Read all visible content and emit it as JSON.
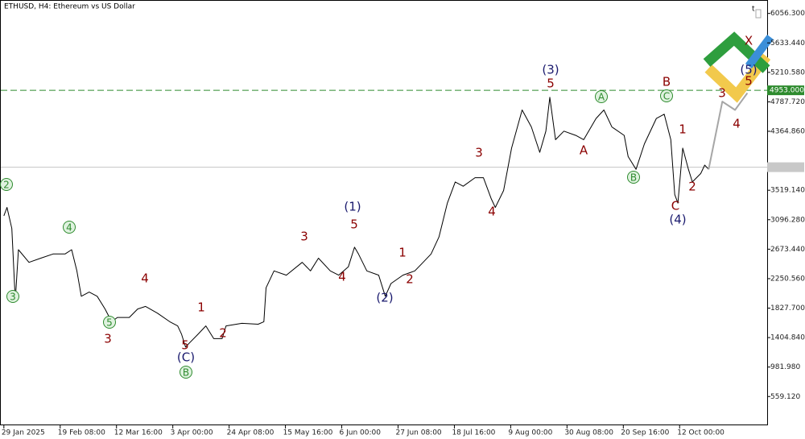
{
  "chart_data": {
    "type": "line",
    "title": "ETHUSD, H4:  Ethereum vs US Dollar",
    "xlim": [
      -7,
      1735
    ],
    "ylim": [
      146,
      6226
    ],
    "xticks": [
      {
        "value": 0,
        "label": "29 Jan 2025"
      },
      {
        "value": 128,
        "label": "19 Feb 08:00"
      },
      {
        "value": 256,
        "label": "12 Mar 16:00"
      },
      {
        "value": 384,
        "label": "3 Apr 00:00"
      },
      {
        "value": 512,
        "label": "24 Apr 08:00"
      },
      {
        "value": 640,
        "label": "15 May 16:00"
      },
      {
        "value": 768,
        "label": "6 Jun 00:00"
      },
      {
        "value": 896,
        "label": "27 Jun 08:00"
      },
      {
        "value": 1024,
        "label": "18 Jul 16:00"
      },
      {
        "value": 1152,
        "label": "9 Aug 00:00"
      },
      {
        "value": 1280,
        "label": "30 Aug 08:00"
      },
      {
        "value": 1408,
        "label": "20 Sep 16:00"
      },
      {
        "value": 1536,
        "label": "12 Oct 00:00"
      }
    ],
    "yticks": [
      {
        "value": 559.12,
        "label": "559.120"
      },
      {
        "value": 981.98,
        "label": "981.980"
      },
      {
        "value": 1404.84,
        "label": "1404.840"
      },
      {
        "value": 1827.7,
        "label": "1827.700"
      },
      {
        "value": 2250.56,
        "label": "2250.560"
      },
      {
        "value": 2673.44,
        "label": "2673.440"
      },
      {
        "value": 3096.28,
        "label": "3096.280"
      },
      {
        "value": 3519.14,
        "label": "3519.140"
      },
      {
        "value": 4364.86,
        "label": "4364.860"
      },
      {
        "value": 4787.72,
        "label": "4787.720"
      },
      {
        "value": 5210.58,
        "label": "5210.580"
      },
      {
        "value": 5633.44,
        "label": "5633.440"
      },
      {
        "value": 6056.3,
        "label": "6056.300"
      }
    ],
    "level": {
      "value": 4953,
      "label": "4953.000",
      "color": "#2e8b2e"
    },
    "current_price": 3850,
    "series": [
      {
        "color": "#000000",
        "x": [
          0,
          7,
          18,
          26,
          33,
          57,
          84,
          112,
          139,
          154,
          166,
          176,
          194,
          212,
          230,
          245,
          258,
          285,
          304,
          322,
          349,
          377,
          395,
          404,
          413,
          422,
          441,
          459,
          477,
          496,
          505,
          541,
          578,
          591,
          596,
          614,
          642,
          678,
          697,
          715,
          742,
          761,
          783,
          797,
          806,
          825,
          852,
          867,
          880,
          907,
          934,
          953,
          971,
          989,
          1008,
          1026,
          1044,
          1071,
          1090,
          1108,
          1117,
          1136,
          1154,
          1178,
          1199,
          1218,
          1232,
          1241,
          1254,
          1273,
          1300,
          1318,
          1346,
          1364,
          1382,
          1410,
          1419,
          1437,
          1456,
          1483,
          1501,
          1516,
          1525,
          1532,
          1543,
          1556,
          1565,
          1584,
          1593,
          1602
        ],
        "values": [
          3152,
          3273,
          2970,
          1937,
          2666,
          2484,
          2544,
          2605,
          2605,
          2666,
          2362,
          1998,
          2058,
          1998,
          1815,
          1633,
          1694,
          1694,
          1815,
          1852,
          1755,
          1633,
          1572,
          1451,
          1268,
          1329,
          1451,
          1572,
          1390,
          1390,
          1572,
          1609,
          1597,
          1633,
          2119,
          2362,
          2301,
          2484,
          2362,
          2544,
          2362,
          2301,
          2420,
          2702,
          2605,
          2362,
          2301,
          1998,
          2180,
          2301,
          2362,
          2484,
          2605,
          2848,
          3334,
          3638,
          3577,
          3699,
          3699,
          3395,
          3273,
          3516,
          4124,
          4671,
          4428,
          4063,
          4367,
          4853,
          4245,
          4367,
          4306,
          4245,
          4549,
          4671,
          4428,
          4306,
          4002,
          3820,
          4185,
          4549,
          4610,
          4245,
          3456,
          3334,
          4124,
          3820,
          3638,
          3759,
          3880,
          3820
        ]
      },
      {
        "color": "#a6a6a6",
        "x": [
          1602,
          1633,
          1662,
          1690
        ],
        "values": [
          3820,
          4792,
          4671,
          4914
        ]
      }
    ],
    "annotations": [
      {
        "text": "2",
        "color": "#2e8b2e",
        "circled": true
      },
      {
        "text": "3",
        "color": "#2e8b2e",
        "circled": true
      },
      {
        "text": "4",
        "color": "#2e8b2e",
        "circled": true
      },
      {
        "text": "5",
        "color": "#2e8b2e",
        "circled": true
      },
      {
        "text": "3",
        "color": "#8b0000",
        "circled": false
      },
      {
        "text": "4",
        "color": "#8b0000",
        "circled": false
      },
      {
        "text": "5",
        "color": "#8b0000",
        "circled": false
      },
      {
        "text": "(C)",
        "color": "#1a1a6e",
        "circled": false
      },
      {
        "text": "B",
        "color": "#2e8b2e",
        "circled": true
      },
      {
        "text": "1",
        "color": "#8b0000",
        "circled": false
      },
      {
        "text": "2",
        "color": "#8b0000",
        "circled": false
      },
      {
        "text": "3",
        "color": "#8b0000",
        "circled": false
      },
      {
        "text": "4",
        "color": "#8b0000",
        "circled": false
      },
      {
        "text": "(1)",
        "color": "#1a1a6e",
        "circled": false
      },
      {
        "text": "5",
        "color": "#8b0000",
        "circled": false
      },
      {
        "text": "(2)",
        "color": "#1a1a6e",
        "circled": false
      },
      {
        "text": "1",
        "color": "#8b0000",
        "circled": false
      },
      {
        "text": "2",
        "color": "#8b0000",
        "circled": false
      },
      {
        "text": "3",
        "color": "#8b0000",
        "circled": false
      },
      {
        "text": "4",
        "color": "#8b0000",
        "circled": false
      },
      {
        "text": "(3)",
        "color": "#1a1a6e",
        "circled": false
      },
      {
        "text": "5",
        "color": "#8b0000",
        "circled": false
      },
      {
        "text": "A",
        "color": "#8b0000",
        "circled": false
      },
      {
        "text": "A",
        "color": "#2e8b2e",
        "circled": true
      },
      {
        "text": "B",
        "color": "#2e8b2e",
        "circled": true
      },
      {
        "text": "B",
        "color": "#8b0000",
        "circled": false
      },
      {
        "text": "C",
        "color": "#2e8b2e",
        "circled": true
      },
      {
        "text": "1",
        "color": "#8b0000",
        "circled": false
      },
      {
        "text": "C",
        "color": "#8b0000",
        "circled": false
      },
      {
        "text": "(4)",
        "color": "#1a1a6e",
        "circled": false
      },
      {
        "text": "2",
        "color": "#8b0000",
        "circled": false
      },
      {
        "text": "3",
        "color": "#8b0000",
        "circled": false
      },
      {
        "text": "4",
        "color": "#8b0000",
        "circled": false
      },
      {
        "text": "(5)",
        "color": "#1a1a6e",
        "circled": false
      },
      {
        "text": "5",
        "color": "#8b0000",
        "circled": false
      },
      {
        "text": "X",
        "color": "#8b0000",
        "circled": false
      }
    ]
  }
}
